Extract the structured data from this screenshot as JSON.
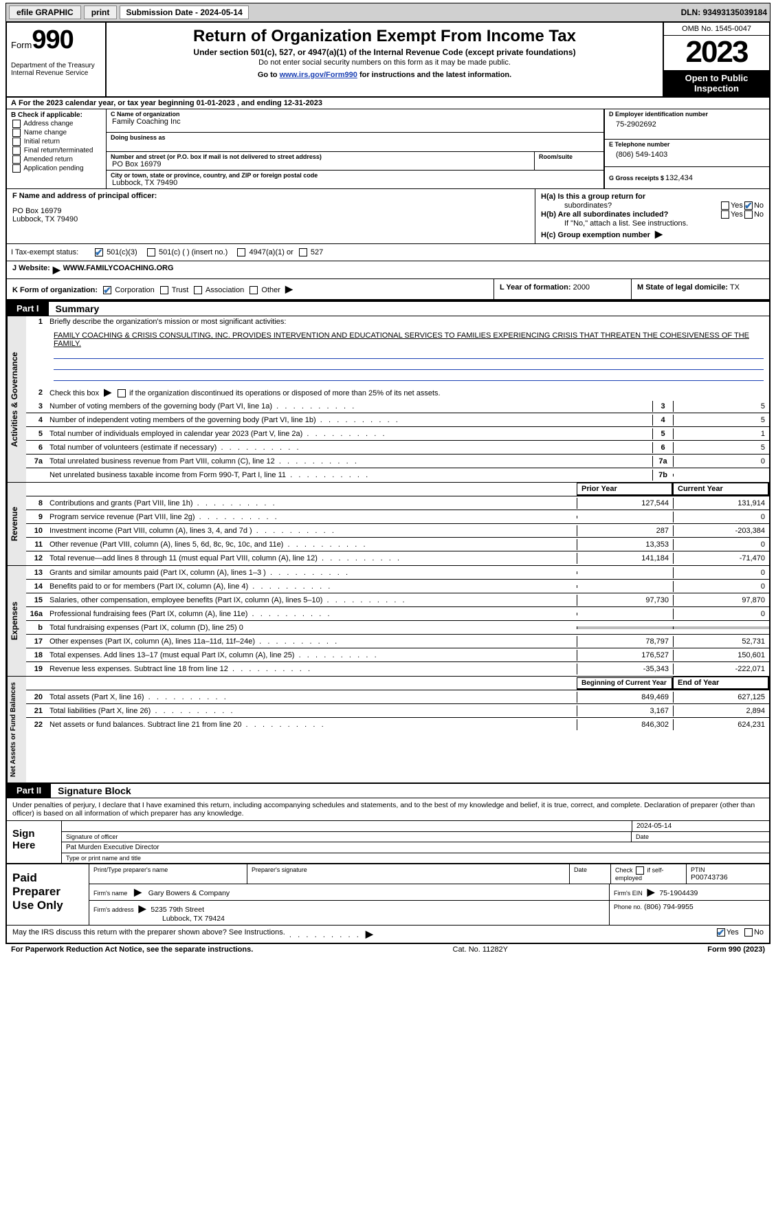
{
  "topbar": {
    "efile": "efile GRAPHIC",
    "print": "print",
    "submission": "Submission Date - 2024-05-14",
    "dln": "DLN: 93493135039184"
  },
  "header": {
    "form_prefix": "Form",
    "form_num": "990",
    "title": "Return of Organization Exempt From Income Tax",
    "subtitle": "Under section 501(c), 527, or 4947(a)(1) of the Internal Revenue Code (except private foundations)",
    "ssn_warn": "Do not enter social security numbers on this form as it may be made public.",
    "goto_pre": "Go to ",
    "goto_link": "www.irs.gov/Form990",
    "goto_post": " for instructions and the latest information.",
    "dept": "Department of the Treasury",
    "irs": "Internal Revenue Service",
    "omb": "OMB No. 1545-0047",
    "year": "2023",
    "open1": "Open to Public",
    "open2": "Inspection"
  },
  "row_a": {
    "prefix_a": "A",
    "text": "  For the 2023 calendar year, or tax year beginning 01-01-2023    , and ending 12-31-2023"
  },
  "section_b": {
    "title": "B Check if applicable:",
    "opts": [
      "Address change",
      "Name change",
      "Initial return",
      "Final return/terminated",
      "Amended return",
      "Application pending"
    ]
  },
  "section_c": {
    "name_lbl": "C Name of organization",
    "name_val": "Family Coaching Inc",
    "dba_lbl": "Doing business as",
    "dba_val": "",
    "street_lbl": "Number and street (or P.O. box if mail is not delivered to street address)",
    "street_val": "PO Box 16979",
    "room_lbl": "Room/suite",
    "city_lbl": "City or town, state or province, country, and ZIP or foreign postal code",
    "city_val": "Lubbock, TX  79490"
  },
  "section_d": {
    "lbl": "D Employer identification number",
    "val": "75-2902692"
  },
  "section_e": {
    "lbl": "E Telephone number",
    "val": "(806) 549-1403"
  },
  "section_g": {
    "lbl": "G Gross receipts $",
    "val": "132,434"
  },
  "section_f": {
    "lbl": "F  Name and address of principal officer:",
    "line1": "PO Box 16979",
    "line2": "Lubbock, TX  79490"
  },
  "section_h": {
    "a": "H(a)  Is this a group return for",
    "a2": "subordinates?",
    "b": "H(b)  Are all subordinates included?",
    "note": "If \"No,\" attach a list. See instructions.",
    "c": "H(c)  Group exemption number",
    "c_arrow": "▶",
    "yes": "Yes",
    "no": "No"
  },
  "section_i": {
    "lbl": "I     Tax-exempt status:",
    "o1": "501(c)(3)",
    "o2": "501(c) (  ) (insert no.)",
    "o3": "4947(a)(1) or",
    "o4": "527"
  },
  "section_j": {
    "lbl": "J    Website:",
    "arrow": "▶",
    "val": "WWW.FAMILYCOACHING.ORG"
  },
  "section_k": {
    "lbl": "K Form of organization:",
    "o1": "Corporation",
    "o2": "Trust",
    "o3": "Association",
    "o4": "Other",
    "arrow": "▶"
  },
  "section_l": {
    "lbl": "L Year of formation:",
    "val": "2000"
  },
  "section_m": {
    "lbl": "M State of legal domicile:",
    "val": "TX"
  },
  "part1": {
    "hdr": "Part I",
    "title": "Summary",
    "tab_gov": "Activities & Governance",
    "tab_rev": "Revenue",
    "tab_exp": "Expenses",
    "tab_net": "Net Assets or Fund Balances",
    "l1_lbl": "Briefly describe the organization's mission or most significant activities:",
    "l1_val": "FAMILY COACHING & CRISIS CONSULITING, INC. PROVIDES INTERVENTION AND EDUCATIONAL SERVICES TO FAMILIES EXPERIENCING CRISIS THAT THREATEN THE COHESIVENESS OF THE FAMILY.",
    "l2": "Check this box ▶         if the organization discontinued its operations or disposed of more than 25% of its net assets.",
    "lines_gov": [
      {
        "n": "3",
        "t": "Number of voting members of the governing body (Part VI, line 1a)",
        "c": "3",
        "v": "5"
      },
      {
        "n": "4",
        "t": "Number of independent voting members of the governing body (Part VI, line 1b)",
        "c": "4",
        "v": "5"
      },
      {
        "n": "5",
        "t": "Total number of individuals employed in calendar year 2023 (Part V, line 2a)",
        "c": "5",
        "v": "1"
      },
      {
        "n": "6",
        "t": "Total number of volunteers (estimate if necessary)",
        "c": "6",
        "v": "5"
      },
      {
        "n": "7a",
        "t": "Total unrelated business revenue from Part VIII, column (C), line 12",
        "c": "7a",
        "v": "0"
      },
      {
        "n": "",
        "t": "Net unrelated business taxable income from Form 990-T, Part I, line 11",
        "c": "7b",
        "v": ""
      }
    ],
    "col_prior": "Prior Year",
    "col_curr": "Current Year",
    "lines_rev": [
      {
        "n": "8",
        "t": "Contributions and grants (Part VIII, line 1h)",
        "p": "127,544",
        "c": "131,914"
      },
      {
        "n": "9",
        "t": "Program service revenue (Part VIII, line 2g)",
        "p": "",
        "c": "0"
      },
      {
        "n": "10",
        "t": "Investment income (Part VIII, column (A), lines 3, 4, and 7d )",
        "p": "287",
        "c": "-203,384"
      },
      {
        "n": "11",
        "t": "Other revenue (Part VIII, column (A), lines 5, 6d, 8c, 9c, 10c, and 11e)",
        "p": "13,353",
        "c": "0"
      },
      {
        "n": "12",
        "t": "Total revenue—add lines 8 through 11 (must equal Part VIII, column (A), line 12)",
        "p": "141,184",
        "c": "-71,470"
      }
    ],
    "lines_exp": [
      {
        "n": "13",
        "t": "Grants and similar amounts paid (Part IX, column (A), lines 1–3 )",
        "p": "",
        "c": "0"
      },
      {
        "n": "14",
        "t": "Benefits paid to or for members (Part IX, column (A), line 4)",
        "p": "",
        "c": "0"
      },
      {
        "n": "15",
        "t": "Salaries, other compensation, employee benefits (Part IX, column (A), lines 5–10)",
        "p": "97,730",
        "c": "97,870"
      },
      {
        "n": "16a",
        "t": "Professional fundraising fees (Part IX, column (A), line 11e)",
        "p": "",
        "c": "0"
      },
      {
        "n": "b",
        "t": "Total fundraising expenses (Part IX, column (D), line 25) 0",
        "p": "SHADE",
        "c": "SHADE"
      },
      {
        "n": "17",
        "t": "Other expenses (Part IX, column (A), lines 11a–11d, 11f–24e)",
        "p": "78,797",
        "c": "52,731"
      },
      {
        "n": "18",
        "t": "Total expenses. Add lines 13–17 (must equal Part IX, column (A), line 25)",
        "p": "176,527",
        "c": "150,601"
      },
      {
        "n": "19",
        "t": "Revenue less expenses. Subtract line 18 from line 12",
        "p": "-35,343",
        "c": "-222,071"
      }
    ],
    "col_beg": "Beginning of Current Year",
    "col_end": "End of Year",
    "lines_net": [
      {
        "n": "20",
        "t": "Total assets (Part X, line 16)",
        "p": "849,469",
        "c": "627,125"
      },
      {
        "n": "21",
        "t": "Total liabilities (Part X, line 26)",
        "p": "3,167",
        "c": "2,894"
      },
      {
        "n": "22",
        "t": "Net assets or fund balances. Subtract line 21 from line 20",
        "p": "846,302",
        "c": "624,231"
      }
    ]
  },
  "part2": {
    "hdr": "Part II",
    "title": "Signature Block",
    "intro": "Under penalties of perjury, I declare that I have examined this return, including accompanying schedules and statements, and to the best of my knowledge and belief, it is true, correct, and complete. Declaration of preparer (other than officer) is based on all information of which preparer has any knowledge.",
    "sign_here": "Sign Here",
    "sig_off": "Signature of officer",
    "sig_date": "Date",
    "sig_date_val": "2024-05-14",
    "sig_name": "Pat Murden  Executive Director",
    "sig_name_lbl": "Type or print name and title",
    "paid": "Paid Preparer Use Only",
    "p_name_lbl": "Print/Type preparer's name",
    "p_sig_lbl": "Preparer's signature",
    "p_date_lbl": "Date",
    "p_check": "Check          if self-employed",
    "p_ptin_lbl": "PTIN",
    "p_ptin": "P00743736",
    "firm_name_lbl": "Firm's name",
    "firm_name": "Gary Bowers & Company",
    "firm_ein_lbl": "Firm's EIN",
    "firm_ein": "75-1904439",
    "firm_addr_lbl": "Firm's address",
    "firm_addr1": "5235 79th Street",
    "firm_addr2": "Lubbock, TX  79424",
    "phone_lbl": "Phone no.",
    "phone": "(806) 794-9955",
    "discuss": "May the IRS discuss this return with the preparer shown above? See Instructions.",
    "paperwork": "For Paperwork Reduction Act Notice, see the separate instructions.",
    "cat": "Cat. No. 11282Y",
    "form": "Form 990 (2023)"
  }
}
